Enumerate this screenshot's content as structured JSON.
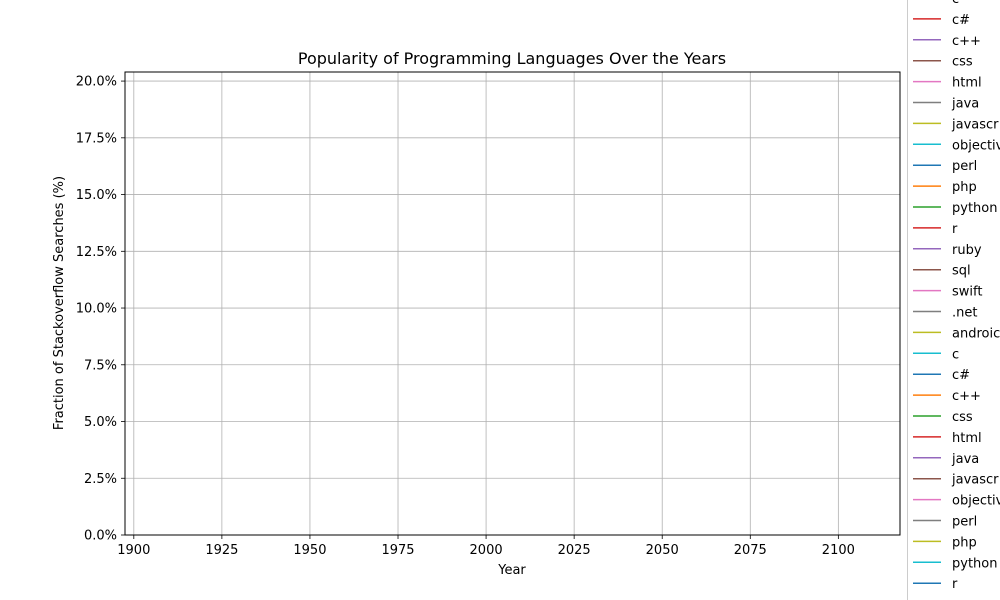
{
  "chart_data": {
    "type": "line",
    "title": "Popularity of Programming Languages Over the Years",
    "xlabel": "Year",
    "ylabel": "Fraction of Stackoverflow Searches (%)",
    "xlim": [
      1897.5,
      2117.5
    ],
    "ylim": [
      0,
      20.4
    ],
    "x_ticks": [
      1900,
      1925,
      1950,
      1975,
      2000,
      2025,
      2050,
      2075,
      2100
    ],
    "x_tick_labels": [
      "1900",
      "1925",
      "1950",
      "1975",
      "2000",
      "2025",
      "2050",
      "2075",
      "2100"
    ],
    "y_ticks": [
      0,
      2.5,
      5,
      7.5,
      10,
      12.5,
      15,
      17.5,
      20
    ],
    "y_tick_labels": [
      "0.0%",
      "2.5%",
      "5.0%",
      "7.5%",
      "10.0%",
      "12.5%",
      "15.0%",
      "17.5%",
      "20.0%"
    ],
    "grid": true,
    "legend_placement": "outside right",
    "series": [
      {
        "name": "c",
        "color": "#17becf",
        "values": []
      },
      {
        "name": "c#",
        "color": "#d62728",
        "values": []
      },
      {
        "name": "c++",
        "color": "#9467bd",
        "values": []
      },
      {
        "name": "css",
        "color": "#8c564b",
        "values": []
      },
      {
        "name": "html",
        "color": "#e377c2",
        "values": []
      },
      {
        "name": "java",
        "color": "#7f7f7f",
        "values": []
      },
      {
        "name": "javascr",
        "color": "#bcbd22",
        "values": []
      },
      {
        "name": "objectiv",
        "color": "#17becf",
        "values": []
      },
      {
        "name": "perl",
        "color": "#1f77b4",
        "values": []
      },
      {
        "name": "php",
        "color": "#ff7f0e",
        "values": []
      },
      {
        "name": "python",
        "color": "#2ca02c",
        "values": []
      },
      {
        "name": "r",
        "color": "#d62728",
        "values": []
      },
      {
        "name": "ruby",
        "color": "#9467bd",
        "values": []
      },
      {
        "name": "sql",
        "color": "#8c564b",
        "values": []
      },
      {
        "name": "swift",
        "color": "#e377c2",
        "values": []
      },
      {
        "name": ".net",
        "color": "#7f7f7f",
        "values": []
      },
      {
        "name": "androic",
        "color": "#bcbd22",
        "values": []
      },
      {
        "name": "c",
        "color": "#17becf",
        "values": []
      },
      {
        "name": "c#",
        "color": "#1f77b4",
        "values": []
      },
      {
        "name": "c++",
        "color": "#ff7f0e",
        "values": []
      },
      {
        "name": "css",
        "color": "#2ca02c",
        "values": []
      },
      {
        "name": "html",
        "color": "#d62728",
        "values": []
      },
      {
        "name": "java",
        "color": "#9467bd",
        "values": []
      },
      {
        "name": "javascr",
        "color": "#8c564b",
        "values": []
      },
      {
        "name": "objectiv",
        "color": "#e377c2",
        "values": []
      },
      {
        "name": "perl",
        "color": "#7f7f7f",
        "values": []
      },
      {
        "name": "php",
        "color": "#bcbd22",
        "values": []
      },
      {
        "name": "python",
        "color": "#17becf",
        "values": []
      },
      {
        "name": "r",
        "color": "#1f77b4",
        "values": []
      }
    ]
  }
}
